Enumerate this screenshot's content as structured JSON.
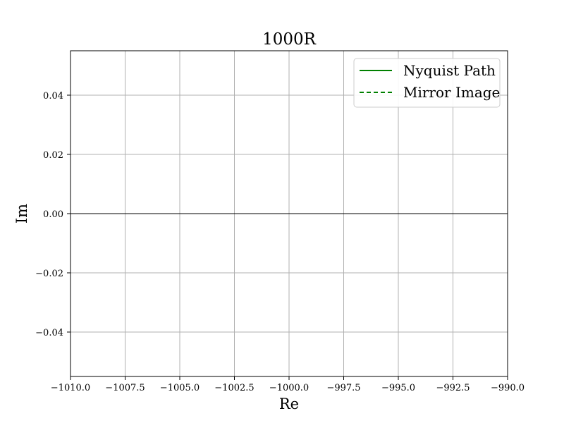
{
  "chart_data": {
    "type": "line",
    "title": "1000R",
    "xlabel": "Re",
    "ylabel": "Im",
    "xlim": [
      -1010.0,
      -990.0
    ],
    "ylim": [
      -0.055,
      0.055
    ],
    "grid": true,
    "legend_position": "top-right",
    "x_ticks": [
      -1010.0,
      -1007.5,
      -1005.0,
      -1002.5,
      -1000.0,
      -997.5,
      -995.0,
      -992.5,
      -990.0
    ],
    "x_tick_labels": [
      "−1010.0",
      "−1007.5",
      "−1005.0",
      "−1002.5",
      "−1000.0",
      "−997.5",
      "−995.0",
      "−992.5",
      "−990.0"
    ],
    "y_ticks": [
      -0.04,
      -0.02,
      0.0,
      0.02,
      0.04
    ],
    "y_tick_labels": [
      "−0.04",
      "−0.02",
      "0.00",
      "0.02",
      "0.04"
    ],
    "reference_line": {
      "y": 0.0,
      "color": "#000000"
    },
    "series": [
      {
        "name": "Nyquist Path",
        "color": "#008000",
        "style": "solid",
        "x": [],
        "y": []
      },
      {
        "name": "Mirror Image",
        "color": "#008000",
        "style": "dashed",
        "x": [],
        "y": []
      }
    ]
  }
}
